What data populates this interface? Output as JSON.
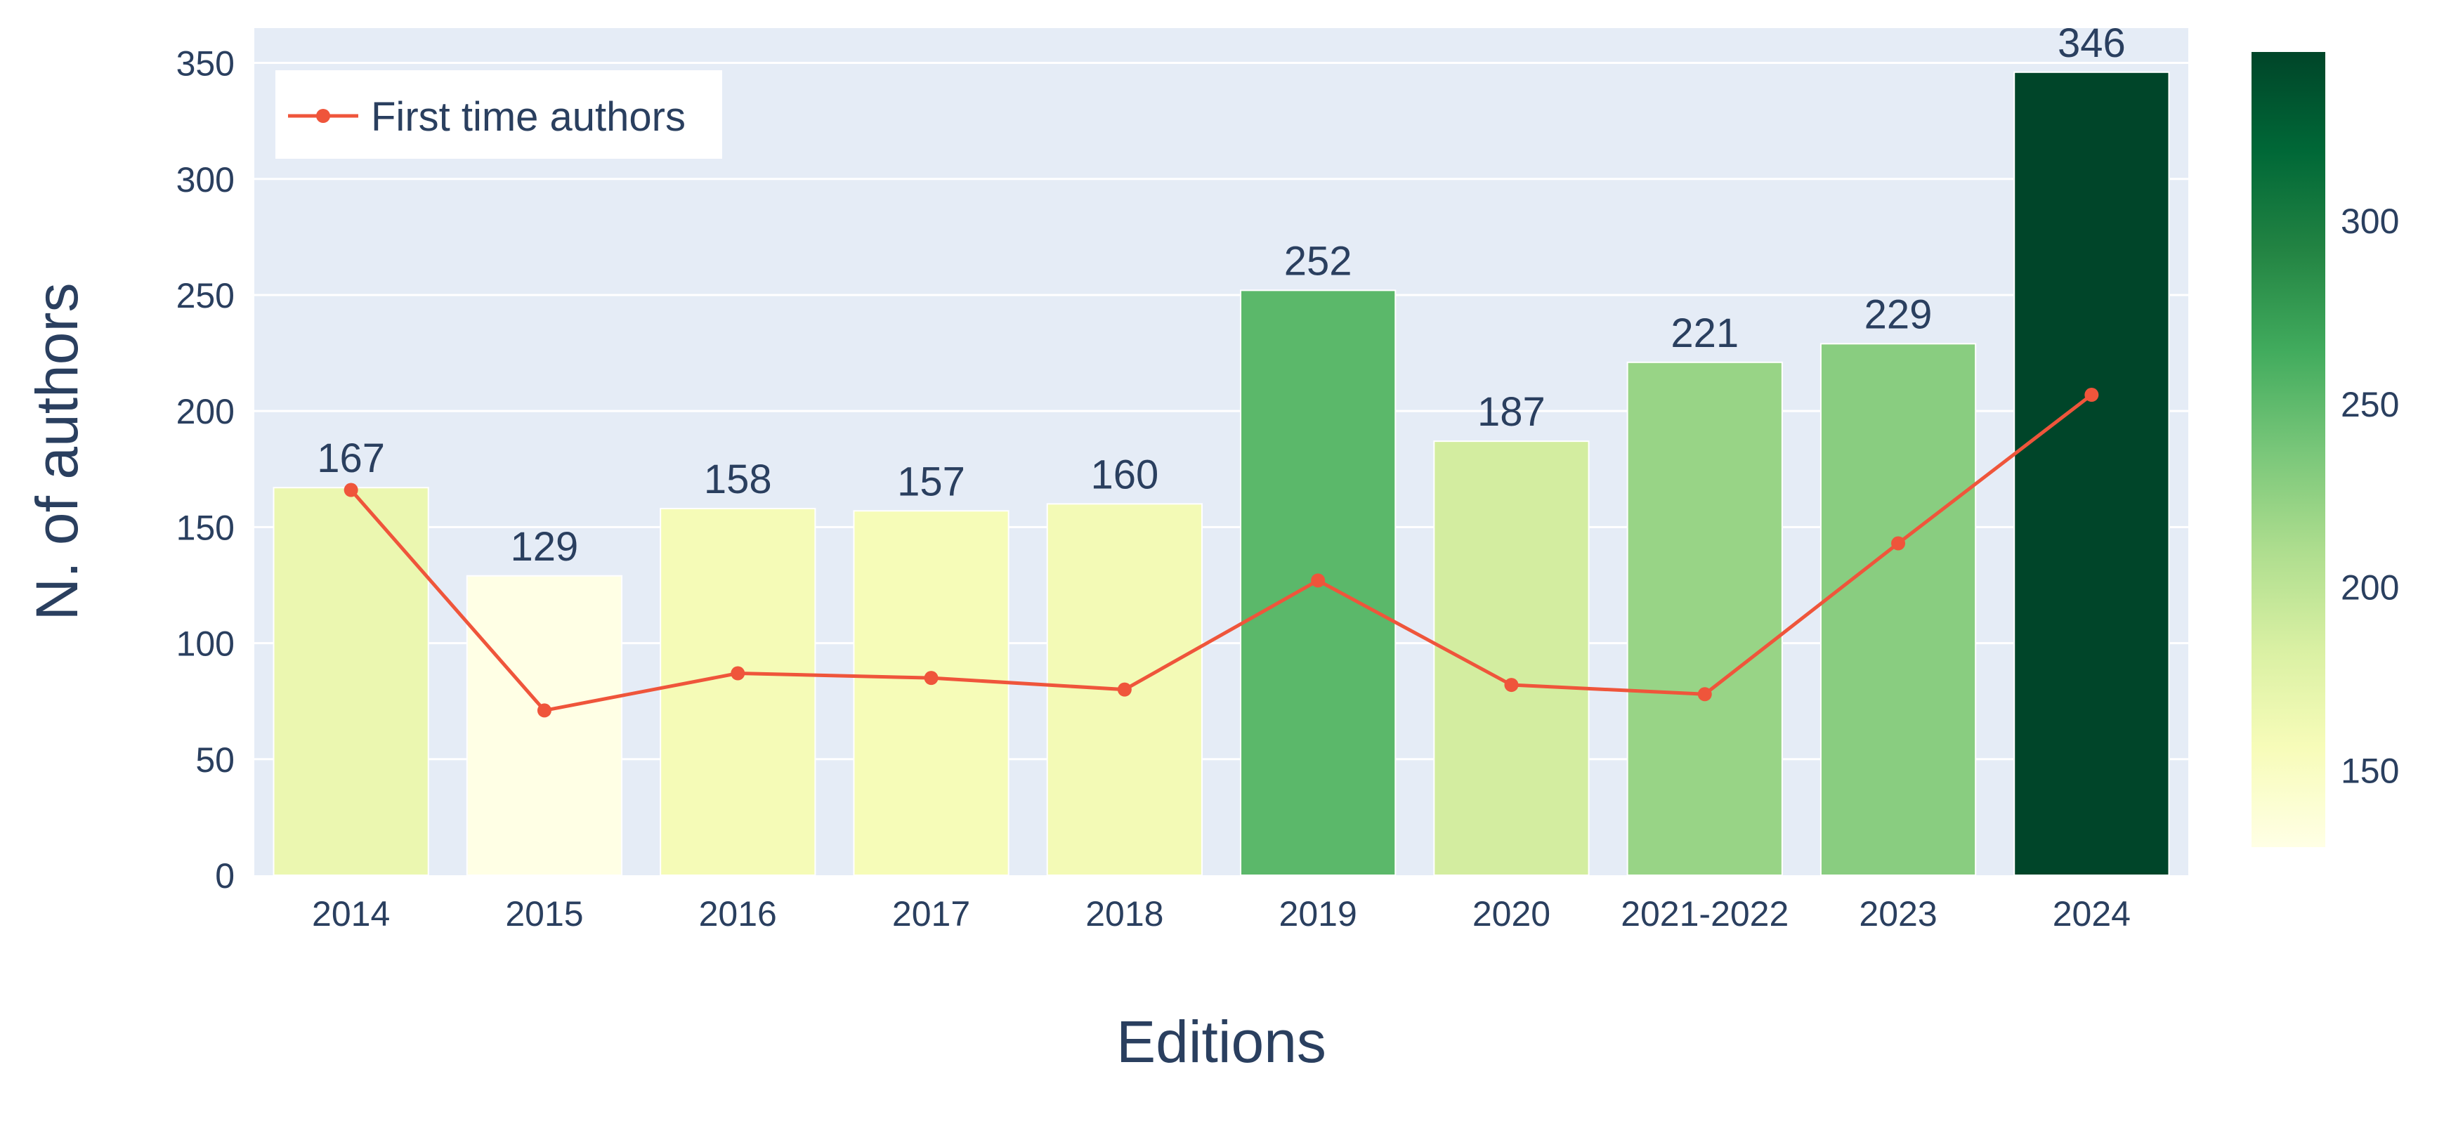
{
  "chart_data": {
    "type": "bar",
    "categories": [
      "2014",
      "2015",
      "2016",
      "2017",
      "2018",
      "2019",
      "2020",
      "2021-2022",
      "2023",
      "2024"
    ],
    "series": [
      {
        "type": "bar",
        "values": [
          167,
          129,
          158,
          157,
          160,
          252,
          187,
          221,
          229,
          346
        ],
        "data_labels": [
          "167",
          "129",
          "158",
          "157",
          "160",
          "252",
          "187",
          "221",
          "229",
          "346"
        ],
        "colorscale": "Greens",
        "color_range": [
          129,
          346
        ]
      },
      {
        "name": "First time authors",
        "type": "line",
        "values": [
          166,
          71,
          87,
          85,
          80,
          127,
          82,
          78,
          143,
          207
        ],
        "color": "#ef553b",
        "markers": true
      }
    ],
    "title": "",
    "xlabel": "Editions",
    "ylabel": "N. of authors",
    "ylim": [
      0,
      365
    ],
    "yticks": [
      "0",
      "50",
      "100",
      "150",
      "200",
      "250",
      "300",
      "350"
    ],
    "grid": true,
    "legend": {
      "position": "top-left",
      "entries": [
        "First time authors"
      ]
    },
    "colorbar": {
      "ticks": [
        "150",
        "200",
        "250",
        "300"
      ],
      "tick_values": [
        150,
        200,
        250,
        300
      ],
      "range": [
        129,
        346
      ]
    },
    "colors": {
      "plot_bg": "#e5ecf6",
      "grid": "#ffffff",
      "text": "#2a3f5f",
      "line": "#ef553b"
    }
  }
}
